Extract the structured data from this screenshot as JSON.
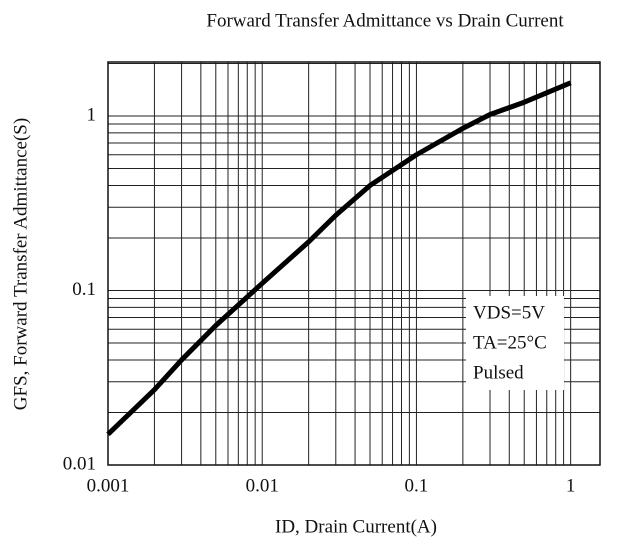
{
  "chart_data": {
    "type": "line",
    "title": "Forward Transfer Admittance vs Drain Current",
    "xlabel": "ID, Drain Current(A)",
    "ylabel": "GFS, Forward Transfer Admittance(S)",
    "x": [
      0.001,
      0.002,
      0.003,
      0.005,
      0.01,
      0.02,
      0.03,
      0.05,
      0.1,
      0.2,
      0.3,
      0.5,
      1
    ],
    "series": [
      {
        "name": "GFS",
        "color": "#000000",
        "values": [
          0.015,
          0.027,
          0.04,
          0.063,
          0.11,
          0.19,
          0.27,
          0.4,
          0.6,
          0.85,
          1.02,
          1.2,
          1.55
        ]
      }
    ],
    "xlim": [
      0.001,
      1.55
    ],
    "ylim": [
      0.01,
      2.04
    ],
    "xticks": [
      0.001,
      0.01,
      0.1,
      1
    ],
    "yticks": [
      0.01,
      0.1,
      1
    ],
    "xscale": "log",
    "yscale": "log",
    "grid": true,
    "minor_grid": true,
    "annotations": [
      "VDS=5V",
      "TA=25°C",
      "Pulsed"
    ]
  }
}
